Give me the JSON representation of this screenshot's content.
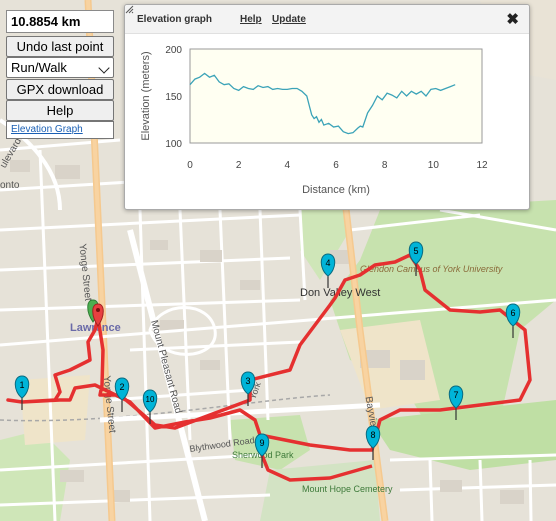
{
  "route": {
    "distance": "10.8854 km",
    "route_color": "#e53030",
    "marker_color": "#00b4d8",
    "start_marker_color": "#e84040"
  },
  "controls": {
    "undo_label": "Undo last point",
    "mode_value": "Run/Walk",
    "gpx_label": "GPX download",
    "help_label": "Help",
    "elevation_link": "Elevation Graph"
  },
  "elevation_popup": {
    "title": "Elevation graph",
    "help_link": "Help",
    "update_link": "Update",
    "close_icon": "close-icon",
    "chart_data": {
      "type": "line",
      "xlabel": "Distance (km)",
      "ylabel": "Elevation (meters)",
      "xlim": [
        0,
        12
      ],
      "ylim": [
        100,
        200
      ],
      "x_ticks": [
        "0",
        "2",
        "4",
        "6",
        "8",
        "10",
        "12"
      ],
      "y_ticks": [
        "100",
        "150",
        "200"
      ],
      "line_color": "#3ba3b8",
      "plot_background": "#fffff2",
      "series": [
        {
          "x": [
            0,
            0.2,
            0.4,
            0.6,
            0.8,
            1.0,
            1.2,
            1.4,
            1.6,
            1.8,
            2.0,
            2.2,
            2.4,
            2.6,
            2.8,
            3.0,
            3.2,
            3.4,
            3.6,
            3.8,
            4.0,
            4.2,
            4.4,
            4.6,
            4.8,
            4.9,
            5.0,
            5.1,
            5.2,
            5.3,
            5.4,
            5.5,
            5.7,
            5.9,
            6.1,
            6.3,
            6.5,
            6.7,
            6.9,
            7.0,
            7.1,
            7.3,
            7.5,
            7.7,
            7.9,
            8.1,
            8.3,
            8.5,
            8.7,
            8.9,
            9.1,
            9.3,
            9.5,
            9.7,
            9.9,
            10.1,
            10.3,
            10.5,
            10.7,
            10.9
          ],
          "y": [
            162,
            168,
            170,
            174,
            170,
            172,
            165,
            162,
            163,
            158,
            156,
            160,
            158,
            157,
            161,
            159,
            160,
            157,
            158,
            157,
            157,
            158,
            158,
            155,
            150,
            140,
            130,
            126,
            128,
            122,
            125,
            119,
            121,
            117,
            118,
            112,
            110,
            111,
            116,
            118,
            117,
            132,
            140,
            150,
            146,
            153,
            151,
            148,
            155,
            150,
            155,
            152,
            155,
            150,
            157,
            158,
            156,
            158,
            160,
            162
          ]
        }
      ]
    }
  },
  "map": {
    "labels": {
      "lawrence": "Lawrence",
      "yonge": "Yonge Street",
      "mount_pleasant": "Mount Pleasant Road",
      "bayview": "Bayview",
      "blythwood": "Blythwood Road",
      "sherwood": "Sherwood Park",
      "don_valley": "Don Valley West",
      "glendon": "Glendon Campus of York University",
      "mount_hope": "Mount Hope Cemetery",
      "york": "York",
      "boulevard": "ulevard",
      "toronto": "onto"
    },
    "markers": [
      "1",
      "2",
      "3",
      "4",
      "5",
      "6",
      "7",
      "8",
      "9",
      "10"
    ]
  }
}
